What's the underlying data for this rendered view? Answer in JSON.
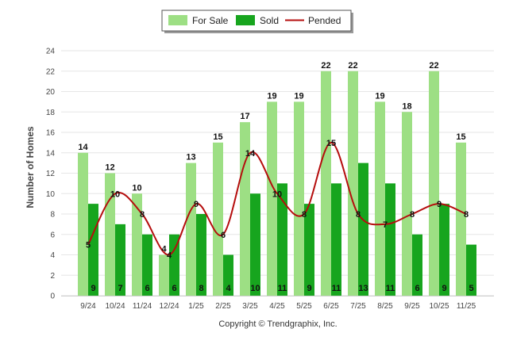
{
  "chart_data": {
    "type": "bar",
    "categories": [
      "9/24",
      "10/24",
      "11/24",
      "12/24",
      "1/25",
      "2/25",
      "3/25",
      "4/25",
      "5/25",
      "6/25",
      "7/25",
      "8/25",
      "9/25",
      "10/25",
      "11/25"
    ],
    "series": [
      {
        "name": "For Sale",
        "type": "bar",
        "color": "#9ddf84",
        "values": [
          14,
          12,
          10,
          4,
          13,
          15,
          17,
          19,
          19,
          22,
          22,
          19,
          18,
          22,
          15
        ]
      },
      {
        "name": "Sold",
        "type": "bar",
        "color": "#17a51e",
        "values": [
          9,
          7,
          6,
          6,
          8,
          4,
          10,
          11,
          9,
          11,
          13,
          11,
          6,
          9,
          5
        ]
      },
      {
        "name": "Pended",
        "type": "line",
        "color": "#b50d0d",
        "values": [
          5,
          10,
          8,
          4,
          9,
          6,
          14,
          10,
          8,
          15,
          8,
          7,
          8,
          9,
          8
        ]
      }
    ],
    "ylabel": "Number of Homes",
    "xlabel": "",
    "ylim": [
      0,
      24
    ],
    "yticks": [
      0,
      2,
      4,
      6,
      8,
      10,
      12,
      14,
      16,
      18,
      20,
      22,
      24
    ],
    "legend_position": "top-center",
    "grid": true
  },
  "footer": {
    "copyright": "Copyright © Trendgraphix, Inc."
  }
}
